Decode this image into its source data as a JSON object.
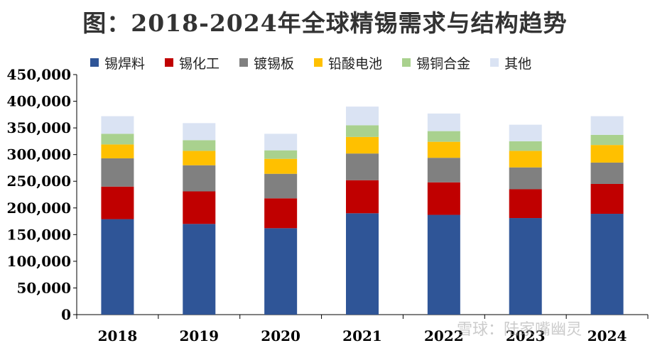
{
  "chart_data": {
    "type": "bar",
    "stacked": true,
    "title": "图：2018-2024年全球精锡需求与结构趋势",
    "xlabel": "",
    "ylabel": "",
    "ylim": [
      0,
      450000
    ],
    "ytick_step": 50000,
    "ytick_labels": [
      "0",
      "50,000",
      "100,000",
      "150,000",
      "200,000",
      "250,000",
      "300,000",
      "350,000",
      "400,000",
      "450,000"
    ],
    "categories": [
      "2018",
      "2019",
      "2020",
      "2021",
      "2022",
      "2023",
      "2024"
    ],
    "legend_position": "top",
    "grid": false,
    "series": [
      {
        "name": "锡焊料",
        "color": "#2F5597",
        "values": [
          179000,
          170000,
          162000,
          190000,
          187000,
          181000,
          189000
        ]
      },
      {
        "name": "锡化工",
        "color": "#C00000",
        "values": [
          61000,
          61000,
          56000,
          62000,
          61000,
          54000,
          56000
        ]
      },
      {
        "name": "镀锡板",
        "color": "#808080",
        "values": [
          53000,
          49000,
          46000,
          50000,
          46000,
          41000,
          40000
        ]
      },
      {
        "name": "铅酸电池",
        "color": "#FFC000",
        "values": [
          26000,
          27000,
          28000,
          31000,
          30000,
          31000,
          33000
        ]
      },
      {
        "name": "锡铜合金",
        "color": "#A9D18E",
        "values": [
          20000,
          20000,
          16000,
          22000,
          20000,
          18000,
          19000
        ]
      },
      {
        "name": "其他",
        "color": "#DAE3F3",
        "values": [
          33000,
          32000,
          31000,
          35000,
          33000,
          31000,
          35000
        ]
      }
    ]
  },
  "watermark": "雪球：陆家嘴幽灵"
}
